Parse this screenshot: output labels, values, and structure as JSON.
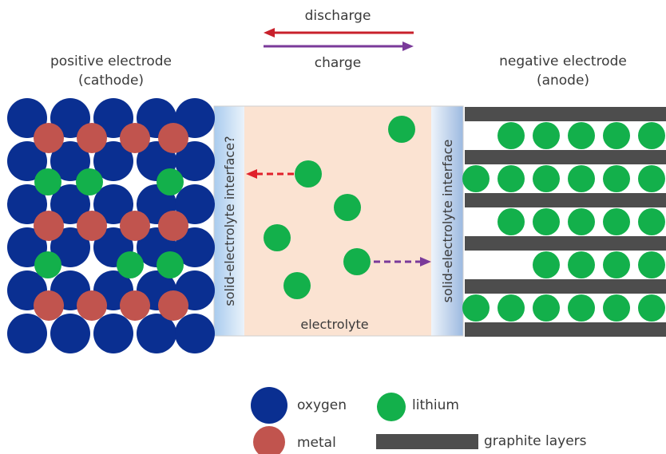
{
  "arrows": {
    "discharge_label": "discharge",
    "charge_label": "charge",
    "discharge_color": "#c8202b",
    "charge_color": "#7a3a9a"
  },
  "cathode": {
    "title_line1": "positive electrode",
    "title_line2": "(cathode)"
  },
  "anode": {
    "title_line1": "negative electrode",
    "title_line2": "(anode)"
  },
  "interfaces": {
    "left_label": "solid-electrolyte interface?",
    "right_label": "solid-electrolyte interface"
  },
  "electrolyte": {
    "label": "electrolyte"
  },
  "legend": {
    "oxygen": "oxygen",
    "metal": "metal",
    "lithium": "lithium",
    "graphite": "graphite layers"
  },
  "colors": {
    "oxygen": "#0a2f91",
    "metal": "#c1544e",
    "lithium": "#13b04b",
    "graphite": "#4d4d4d",
    "electrolyte": "#fbe3d2",
    "interface": "#cfe3f5"
  }
}
